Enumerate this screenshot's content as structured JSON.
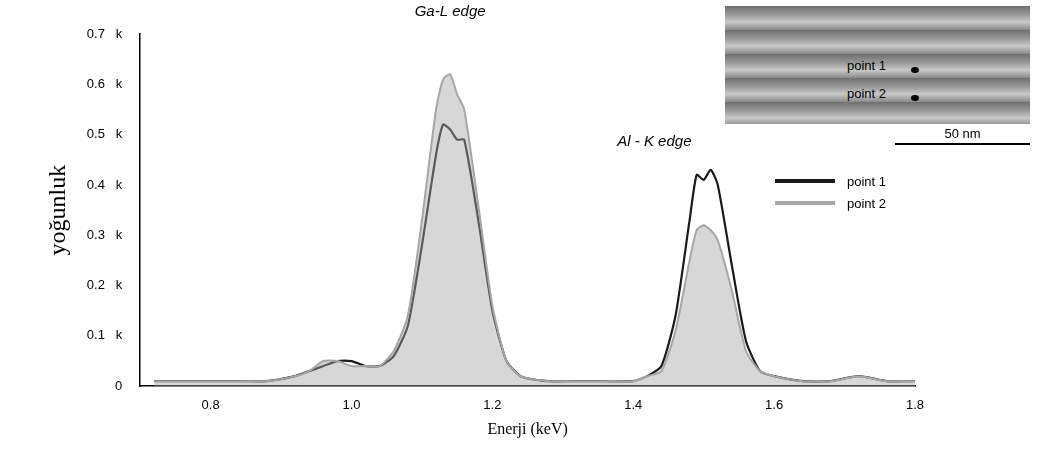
{
  "chart_data": {
    "type": "line",
    "x_label": "Enerji (keV)",
    "y_label": "yoğunluk",
    "x": [
      0.72,
      0.76,
      0.8,
      0.84,
      0.88,
      0.92,
      0.94,
      0.96,
      0.98,
      1.0,
      1.02,
      1.04,
      1.06,
      1.08,
      1.1,
      1.12,
      1.13,
      1.14,
      1.15,
      1.16,
      1.18,
      1.2,
      1.22,
      1.24,
      1.28,
      1.32,
      1.36,
      1.4,
      1.42,
      1.44,
      1.46,
      1.48,
      1.49,
      1.5,
      1.51,
      1.52,
      1.54,
      1.56,
      1.58,
      1.6,
      1.64,
      1.68,
      1.72,
      1.76,
      1.8
    ],
    "series": [
      {
        "name": "point 2",
        "color": "#a6a6a6",
        "type": "area",
        "values": [
          0.01,
          0.01,
          0.01,
          0.01,
          0.01,
          0.02,
          0.03,
          0.05,
          0.05,
          0.04,
          0.04,
          0.04,
          0.07,
          0.14,
          0.33,
          0.55,
          0.61,
          0.62,
          0.58,
          0.55,
          0.36,
          0.16,
          0.05,
          0.02,
          0.01,
          0.01,
          0.01,
          0.01,
          0.02,
          0.03,
          0.11,
          0.25,
          0.31,
          0.32,
          0.31,
          0.29,
          0.19,
          0.07,
          0.03,
          0.02,
          0.01,
          0.01,
          0.02,
          0.01,
          0.01
        ]
      },
      {
        "name": "point 1",
        "color": "#1a1a1a",
        "type": "line",
        "values": [
          0.01,
          0.01,
          0.01,
          0.01,
          0.01,
          0.02,
          0.03,
          0.04,
          0.05,
          0.05,
          0.04,
          0.04,
          0.06,
          0.12,
          0.28,
          0.46,
          0.52,
          0.51,
          0.49,
          0.49,
          0.33,
          0.15,
          0.05,
          0.02,
          0.01,
          0.01,
          0.01,
          0.01,
          0.02,
          0.04,
          0.14,
          0.33,
          0.42,
          0.41,
          0.43,
          0.4,
          0.24,
          0.09,
          0.03,
          0.02,
          0.01,
          0.01,
          0.02,
          0.01,
          0.01
        ]
      }
    ],
    "xlim": [
      0.7,
      1.8
    ],
    "xticks": [
      0.8,
      {
        "value": 1,
        "label": "1.0"
      },
      1.2,
      1.4,
      1.6,
      1.8
    ],
    "ylim": [
      0,
      0.7
    ],
    "yticks": [
      0,
      {
        "value": 0.1,
        "label": "0.1   k"
      },
      {
        "value": 0.2,
        "label": "0.2   k"
      },
      {
        "value": 0.3,
        "label": "0.3   k"
      },
      {
        "value": 0.4,
        "label": "0.4   k"
      },
      {
        "value": 0.5,
        "label": "0.5   k"
      },
      {
        "value": 0.6,
        "label": "0.6   k"
      },
      {
        "value": 0.7,
        "label": "0.7   k"
      }
    ],
    "annotations": [
      {
        "text": "Ga-L edge",
        "x": 1.14,
        "y": 0.73
      },
      {
        "text": "Al - K edge",
        "x": 1.43,
        "y": 0.47
      }
    ],
    "inset": {
      "labels": [
        "point 1",
        "point 2"
      ],
      "scale_bar": "50 nm"
    },
    "grid": false,
    "legend": "right"
  }
}
